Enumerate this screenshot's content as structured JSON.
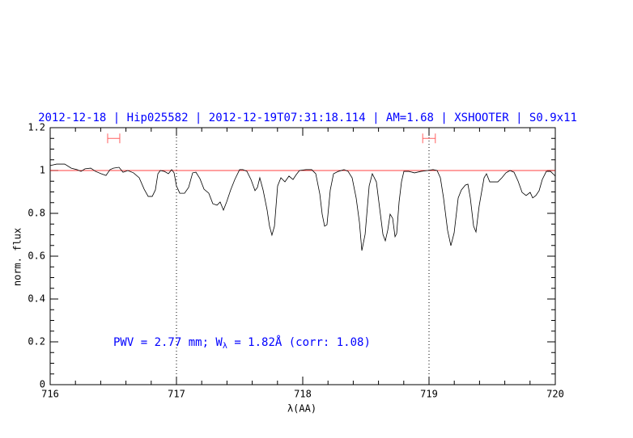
{
  "chart_data": {
    "type": "line",
    "title": "2012-12-18 | Hip025582 | 2012-12-19T07:31:18.114 | AM=1.68 | XSHOOTER | S0.9x11",
    "annotation": [
      "PWV = 2.77 mm; W",
      "λ",
      " = 1.82Å (corr: 1.08)"
    ],
    "xlabel": "λ(AA)",
    "ylabel": "norm. flux",
    "x": [
      716.0,
      716.051,
      716.115,
      716.167,
      716.212,
      716.244,
      716.276,
      716.321,
      716.359,
      716.404,
      716.442,
      716.474,
      716.5,
      716.545,
      716.577,
      716.615,
      716.66,
      716.705,
      716.744,
      716.776,
      716.808,
      716.833,
      716.853,
      716.872,
      716.904,
      716.936,
      716.962,
      716.981,
      717.0,
      717.026,
      717.064,
      717.096,
      717.128,
      717.154,
      717.186,
      717.218,
      717.256,
      717.288,
      717.321,
      717.346,
      717.372,
      717.397,
      717.429,
      717.462,
      717.5,
      717.526,
      717.558,
      717.59,
      717.622,
      717.641,
      717.66,
      717.686,
      717.718,
      717.737,
      717.756,
      717.776,
      717.801,
      717.827,
      717.859,
      717.891,
      717.923,
      717.949,
      717.974,
      718.026,
      718.071,
      718.103,
      718.135,
      718.154,
      718.173,
      718.192,
      718.218,
      718.244,
      718.282,
      718.327,
      718.359,
      718.391,
      718.423,
      718.449,
      718.468,
      718.494,
      718.526,
      718.551,
      718.583,
      718.615,
      718.635,
      718.654,
      718.673,
      718.692,
      718.712,
      718.731,
      718.744,
      718.763,
      718.782,
      718.801,
      718.84,
      718.885,
      718.936,
      718.987,
      719.032,
      719.064,
      719.09,
      719.115,
      719.147,
      719.173,
      719.199,
      719.231,
      719.256,
      719.288,
      719.308,
      719.327,
      719.353,
      719.372,
      719.397,
      719.436,
      719.455,
      719.481,
      719.513,
      719.545,
      719.577,
      719.609,
      719.641,
      719.673,
      719.705,
      719.737,
      719.769,
      719.801,
      719.821,
      719.846,
      719.872,
      719.897,
      719.929,
      719.962,
      720.0
    ],
    "values": [
      1.023,
      1.03,
      1.03,
      1.011,
      1.004,
      0.996,
      1.008,
      1.011,
      0.996,
      0.985,
      0.977,
      1.004,
      1.011,
      1.015,
      0.992,
      1.0,
      0.989,
      0.966,
      0.913,
      0.879,
      0.879,
      0.909,
      0.985,
      1.0,
      0.996,
      0.985,
      1.004,
      0.989,
      0.928,
      0.894,
      0.894,
      0.921,
      0.989,
      0.992,
      0.962,
      0.913,
      0.894,
      0.845,
      0.838,
      0.853,
      0.815,
      0.853,
      0.909,
      0.958,
      1.004,
      1.004,
      0.996,
      0.958,
      0.906,
      0.921,
      0.966,
      0.909,
      0.815,
      0.74,
      0.698,
      0.74,
      0.928,
      0.966,
      0.947,
      0.974,
      0.958,
      0.981,
      1.0,
      1.004,
      1.004,
      0.985,
      0.891,
      0.796,
      0.74,
      0.747,
      0.909,
      0.985,
      0.996,
      1.004,
      0.996,
      0.966,
      0.872,
      0.758,
      0.626,
      0.702,
      0.928,
      0.985,
      0.947,
      0.796,
      0.702,
      0.672,
      0.721,
      0.796,
      0.777,
      0.691,
      0.706,
      0.853,
      0.947,
      0.996,
      0.996,
      0.989,
      0.996,
      1.0,
      1.004,
      1.0,
      0.966,
      0.872,
      0.721,
      0.649,
      0.709,
      0.872,
      0.909,
      0.932,
      0.936,
      0.872,
      0.74,
      0.713,
      0.834,
      0.966,
      0.985,
      0.947,
      0.947,
      0.947,
      0.966,
      0.989,
      1.0,
      0.992,
      0.951,
      0.898,
      0.883,
      0.898,
      0.872,
      0.883,
      0.906,
      0.958,
      0.996,
      0.996,
      0.974
    ],
    "color": "#000000",
    "hline": {
      "y": 1,
      "color": "#ff0000"
    },
    "vlines": [
      717,
      719
    ],
    "markers": [
      {
        "x": 716.503,
        "xerr": 0.048,
        "y": 1.15
      },
      {
        "x": 719.0,
        "xerr": 0.05,
        "y": 1.15
      }
    ],
    "marker_color": "#ff6060",
    "title_color": "#0000ff",
    "xlim": [
      716,
      720
    ],
    "xticks": [
      716,
      717,
      718,
      719,
      720
    ],
    "xminor": [
      716.2,
      716.4,
      716.6,
      716.8,
      717.2,
      717.4,
      717.6,
      717.8,
      718.2,
      718.4,
      718.6,
      718.8,
      719.2,
      719.4,
      719.6,
      719.8
    ],
    "ylim": [
      0,
      1.2
    ],
    "yticks": [
      0,
      0.2,
      0.4,
      0.6,
      0.8,
      1,
      1.2
    ],
    "yminor": [
      0.05,
      0.1,
      0.15,
      0.25,
      0.3,
      0.35,
      0.45,
      0.5,
      0.55,
      0.65,
      0.7,
      0.75,
      0.85,
      0.9,
      0.95,
      1.05,
      1.1,
      1.15
    ]
  }
}
